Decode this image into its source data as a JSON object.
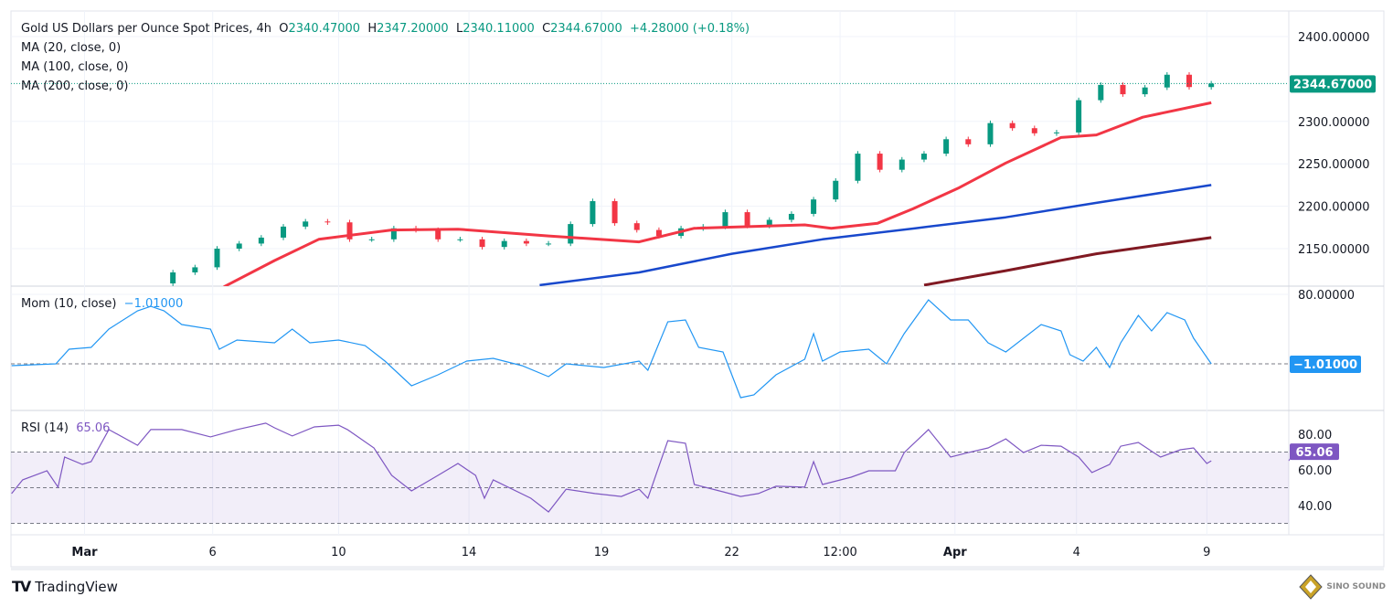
{
  "header": {
    "symbol_title": "Gold US Dollars per Ounce Spot Prices, 4h",
    "open_label": "O",
    "open": "2340.47000",
    "high_label": "H",
    "high": "2347.20000",
    "low_label": "L",
    "low": "2340.11000",
    "close_label": "C",
    "close": "2344.67000",
    "change": "+4.28000 (+0.18%)",
    "ma20_label": "MA (20, close, 0)",
    "ma100_label": "MA (100, close, 0)",
    "ma200_label": "MA (200, close, 0)",
    "mom_label": "Mom (10, close)",
    "mom_value": "−1.01000",
    "rsi_label": "RSI (14)",
    "rsi_value": "65.06"
  },
  "footer": {
    "brand": "TradingView",
    "watermark": "SINO SOUND"
  },
  "colors": {
    "up": "#089981",
    "down": "#f23645",
    "ma20": "#f23645",
    "ma100": "#1848cc",
    "ma200": "#801922",
    "mom": "#2196f3",
    "rsi": "#7e57c2"
  },
  "chart_data": [
    {
      "type": "candlestick",
      "title": "Gold US Dollars per Ounce Spot Prices, 4h",
      "ylim": [
        2105,
        2420
      ],
      "y_ticks": [
        "2400.00000",
        "2300.00000",
        "2250.00000",
        "2200.00000",
        "2150.00000"
      ],
      "y_tick_values": [
        2400,
        2300,
        2250,
        2200,
        2150
      ],
      "last_price_label": "2344.67000",
      "last_price": 2344.67,
      "x_ticks": [
        {
          "label": "Mar",
          "index": -3.0
        },
        {
          "label": "6",
          "index": 2.8
        },
        {
          "label": "10",
          "index": 8.5
        },
        {
          "label": "14",
          "index": 14.4
        },
        {
          "label": "19",
          "index": 20.4
        },
        {
          "label": "22",
          "index": 26.3
        },
        {
          "label": "12:00",
          "index": 31.2
        },
        {
          "label": "Apr",
          "index": 36.4
        },
        {
          "label": "4",
          "index": 41.9
        },
        {
          "label": "9",
          "index": 47.8
        }
      ],
      "closes": [
        2109,
        2122,
        2128,
        2150,
        2156,
        2163,
        2176,
        2182,
        2181,
        2161,
        2161,
        2174,
        2172,
        2161,
        2161,
        2152,
        2159,
        2156,
        2156,
        2179,
        2206,
        2180,
        2172,
        2165,
        2174,
        2176,
        2193,
        2177,
        2184,
        2191,
        2208,
        2230,
        2262,
        2243,
        2255,
        2262,
        2279,
        2273,
        2298,
        2292,
        2286,
        2287,
        2325,
        2343,
        2332,
        2340,
        2355,
        2340.47,
        2344.67
      ],
      "series": [
        {
          "name": "MA (20, close, 0)",
          "points": [
            [
              3.3,
              2105
            ],
            [
              5.6,
              2136
            ],
            [
              7.6,
              2161
            ],
            [
              10.9,
              2172
            ],
            [
              13.9,
              2173
            ],
            [
              18.0,
              2165
            ],
            [
              22.1,
              2158
            ],
            [
              24.6,
              2174
            ],
            [
              29.6,
              2178
            ],
            [
              30.8,
              2174
            ],
            [
              32.9,
              2180
            ],
            [
              34.5,
              2197
            ],
            [
              36.6,
              2222
            ],
            [
              38.7,
              2251
            ],
            [
              41.2,
              2281
            ],
            [
              42.8,
              2284
            ],
            [
              44.9,
              2305
            ],
            [
              48.0,
              2322
            ]
          ]
        },
        {
          "name": "MA (100, close, 0)",
          "points": [
            [
              17.6,
              2107
            ],
            [
              22.1,
              2122
            ],
            [
              26.3,
              2144
            ],
            [
              30.4,
              2161
            ],
            [
              34.6,
              2174
            ],
            [
              38.7,
              2187
            ],
            [
              42.8,
              2204
            ],
            [
              48.0,
              2225
            ]
          ]
        },
        {
          "name": "MA (200, close, 0)",
          "points": [
            [
              35.0,
              2107
            ],
            [
              38.7,
              2124
            ],
            [
              42.8,
              2144
            ],
            [
              48.0,
              2163
            ]
          ]
        }
      ]
    },
    {
      "type": "line",
      "title": "Mom (10, close)",
      "ylim": [
        -48,
        82
      ],
      "y_ticks": [
        "80.00000"
      ],
      "y_tick_values": [
        80
      ],
      "zero_line": 0,
      "last_value_label": "−1.01000",
      "last_value": -1.01,
      "points": [
        [
          -6.3,
          -3.1
        ],
        [
          -4.3,
          -1
        ],
        [
          -3.7,
          16
        ],
        [
          -2.7,
          18.2
        ],
        [
          -1.9,
          39.5
        ],
        [
          -0.6,
          60.8
        ],
        [
          0,
          66.1
        ],
        [
          0.6,
          60.8
        ],
        [
          1.4,
          44.8
        ],
        [
          2.7,
          39.5
        ],
        [
          3.1,
          16
        ],
        [
          3.9,
          26.7
        ],
        [
          5.6,
          23.5
        ],
        [
          6.4,
          39.5
        ],
        [
          7.2,
          23.5
        ],
        [
          8.5,
          26.7
        ],
        [
          9.7,
          20.3
        ],
        [
          10.6,
          2.2
        ],
        [
          11.8,
          -26.6
        ],
        [
          13.0,
          -13.8
        ],
        [
          14.3,
          2.2
        ],
        [
          15.5,
          5.4
        ],
        [
          16.8,
          -3.1
        ],
        [
          18.0,
          -15.9
        ],
        [
          18.8,
          -1
        ],
        [
          20.5,
          -5.3
        ],
        [
          22.1,
          2.2
        ],
        [
          22.5,
          -8.5
        ],
        [
          23.4,
          48
        ],
        [
          24.2,
          50.2
        ],
        [
          24.8,
          18.2
        ],
        [
          25.9,
          12.8
        ],
        [
          26.7,
          -40.5
        ],
        [
          27.3,
          -37.3
        ],
        [
          28.3,
          -13.8
        ],
        [
          29.6,
          4.3
        ],
        [
          30.0,
          34.2
        ],
        [
          30.4,
          2.2
        ],
        [
          31.2,
          12.8
        ],
        [
          32.5,
          16
        ],
        [
          33.3,
          -1
        ],
        [
          34.1,
          34.2
        ],
        [
          35.2,
          73.6
        ],
        [
          36.2,
          50.2
        ],
        [
          37.0,
          50.2
        ],
        [
          37.9,
          23.5
        ],
        [
          38.7,
          12.8
        ],
        [
          40.3,
          44.8
        ],
        [
          41.2,
          37.4
        ],
        [
          41.6,
          9.6
        ],
        [
          42.2,
          2.2
        ],
        [
          42.8,
          18.2
        ],
        [
          43.4,
          -5.3
        ],
        [
          43.9,
          23.5
        ],
        [
          44.7,
          55.5
        ],
        [
          45.3,
          37.4
        ],
        [
          46.0,
          58.7
        ],
        [
          46.8,
          50.2
        ],
        [
          47.2,
          28.9
        ],
        [
          48.0,
          -1.01
        ]
      ]
    },
    {
      "type": "line",
      "title": "RSI (14)",
      "ylim": [
        20,
        92
      ],
      "y_ticks": [
        "80.00",
        "60.00",
        "40.00"
      ],
      "y_tick_values": [
        80,
        60,
        40
      ],
      "bands": [
        70,
        50,
        30
      ],
      "last_value_label": "65.06",
      "last_value": 65.06,
      "points": [
        [
          -6.3,
          46.7
        ],
        [
          -5.8,
          54.4
        ],
        [
          -4.7,
          59.5
        ],
        [
          -4.2,
          50.3
        ],
        [
          -3.9,
          67.2
        ],
        [
          -3.1,
          63.1
        ],
        [
          -2.7,
          64.6
        ],
        [
          -1.9,
          82.6
        ],
        [
          -0.6,
          73.8
        ],
        [
          0,
          82.6
        ],
        [
          1.4,
          82.6
        ],
        [
          2.7,
          78.5
        ],
        [
          3.9,
          82.6
        ],
        [
          5.2,
          86.2
        ],
        [
          5.6,
          83.6
        ],
        [
          6.4,
          79
        ],
        [
          7.4,
          84.1
        ],
        [
          8.5,
          85.1
        ],
        [
          8.9,
          82.6
        ],
        [
          10.1,
          72.3
        ],
        [
          10.9,
          56.9
        ],
        [
          11.8,
          48.2
        ],
        [
          13.0,
          56.9
        ],
        [
          13.9,
          63.6
        ],
        [
          14.7,
          56.9
        ],
        [
          15.1,
          44.1
        ],
        [
          15.5,
          54.4
        ],
        [
          17.2,
          44.1
        ],
        [
          18.0,
          36.4
        ],
        [
          18.8,
          49.2
        ],
        [
          20.1,
          46.7
        ],
        [
          21.3,
          45.1
        ],
        [
          22.1,
          49.2
        ],
        [
          22.5,
          44.1
        ],
        [
          23.4,
          76.4
        ],
        [
          24.2,
          74.9
        ],
        [
          24.6,
          51.8
        ],
        [
          25.9,
          47.7
        ],
        [
          26.7,
          45.1
        ],
        [
          27.5,
          46.7
        ],
        [
          28.3,
          50.8
        ],
        [
          29.6,
          50.3
        ],
        [
          30.0,
          64.6
        ],
        [
          30.4,
          51.8
        ],
        [
          31.7,
          55.9
        ],
        [
          32.5,
          59.5
        ],
        [
          33.7,
          59.5
        ],
        [
          34.1,
          69.7
        ],
        [
          35.2,
          82.6
        ],
        [
          36.2,
          67.2
        ],
        [
          37.0,
          69.7
        ],
        [
          37.9,
          72.3
        ],
        [
          38.7,
          77.4
        ],
        [
          39.5,
          69.7
        ],
        [
          40.3,
          73.8
        ],
        [
          41.2,
          73.3
        ],
        [
          42.0,
          67.2
        ],
        [
          42.6,
          58.5
        ],
        [
          43.4,
          63.1
        ],
        [
          43.9,
          73.3
        ],
        [
          44.7,
          75.4
        ],
        [
          45.7,
          67.2
        ],
        [
          46.6,
          71.3
        ],
        [
          47.2,
          72.3
        ],
        [
          47.8,
          63.6
        ],
        [
          48.0,
          65.06
        ]
      ]
    }
  ]
}
